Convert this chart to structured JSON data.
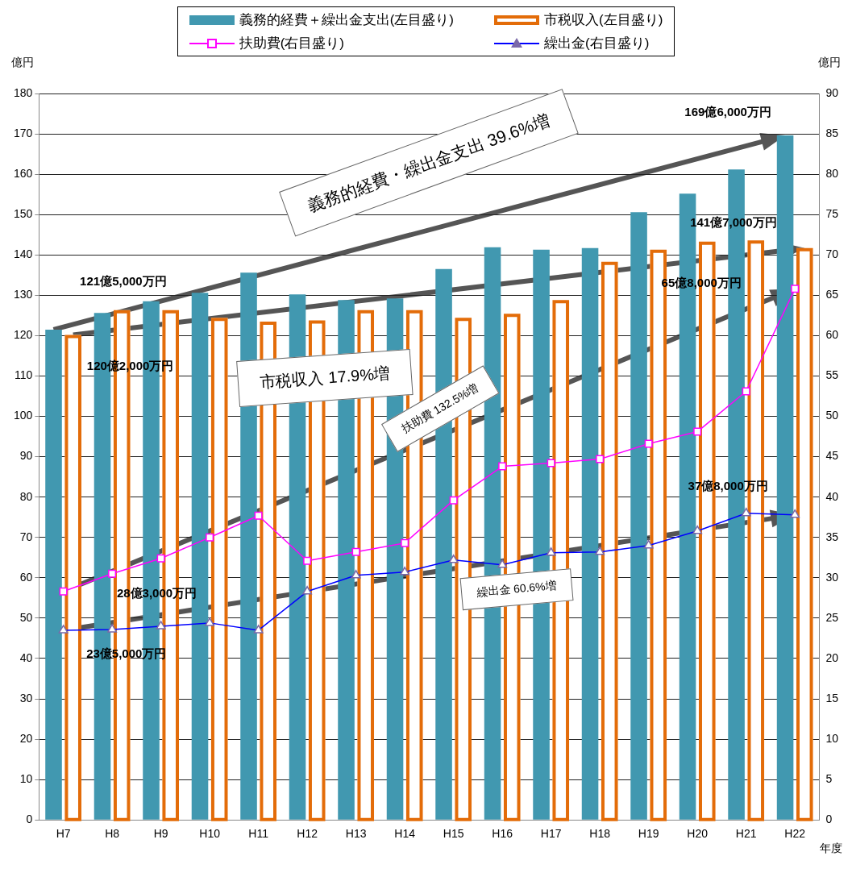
{
  "chart_data": {
    "type": "bar",
    "ylabel": "億円",
    "y2label": "億円",
    "xlabel": "年度",
    "categories": [
      "H7",
      "H8",
      "H9",
      "H10",
      "H11",
      "H12",
      "H13",
      "H14",
      "H15",
      "H16",
      "H17",
      "H18",
      "H19",
      "H20",
      "H21",
      "H22"
    ],
    "series": [
      {
        "name": "義務的経費＋繰出金支出(左目盛り)",
        "color": "#4198b0",
        "values": [
          121.5,
          125.6,
          128.5,
          130.6,
          135.6,
          130.2,
          128.8,
          129.2,
          136.5,
          141.9,
          141.3,
          141.7,
          150.6,
          155.2,
          161.2,
          169.6
        ]
      },
      {
        "name": "市税収入(左目盛り)",
        "color": "#e36c09",
        "values": [
          120.2,
          126.3,
          126.3,
          124.4,
          123.5,
          123.8,
          126.3,
          126.3,
          124.4,
          125.4,
          128.8,
          138.3,
          141.3,
          143.3,
          143.6,
          141.7
        ]
      },
      {
        "name": "扶助費(右目盛り)",
        "type": "line",
        "axis": "y2",
        "marker": "square",
        "color": "#ff00ff",
        "values": [
          28.3,
          30.5,
          32.4,
          35.0,
          37.7,
          32.1,
          33.2,
          34.3,
          39.6,
          43.8,
          44.2,
          44.7,
          46.6,
          48.1,
          53.1,
          65.8
        ]
      },
      {
        "name": "繰出金(右目盛り)",
        "type": "line",
        "axis": "y2",
        "marker": "triangle",
        "color": "#0000ff",
        "values": [
          23.5,
          23.6,
          24.0,
          24.4,
          23.5,
          28.3,
          30.3,
          30.7,
          32.2,
          31.6,
          33.1,
          33.2,
          34.0,
          35.8,
          38.0,
          37.8
        ]
      }
    ],
    "ylim": [
      0,
      180
    ],
    "yticks": [
      0,
      10,
      20,
      30,
      40,
      50,
      60,
      70,
      80,
      90,
      100,
      110,
      120,
      130,
      140,
      150,
      160,
      170,
      180
    ],
    "y2lim": [
      0,
      90
    ],
    "y2ticks": [
      0,
      5,
      10,
      15,
      20,
      25,
      30,
      35,
      40,
      45,
      50,
      55,
      60,
      65,
      70,
      75,
      80,
      85,
      90
    ],
    "grid": "y",
    "legend": "top",
    "annotations": [
      "121億5,000万円",
      "120億2,000万円",
      "169億6,000万円",
      "141億7,000万円",
      "65億8,000万円",
      "37億8,000万円",
      "28億3,000万円",
      "23億5,000万円",
      "義務的経費・繰出金支出 39.6%増",
      "市税収入 17.9%増",
      "扶助費 132.5%増",
      "繰出金 60.6%増"
    ]
  }
}
